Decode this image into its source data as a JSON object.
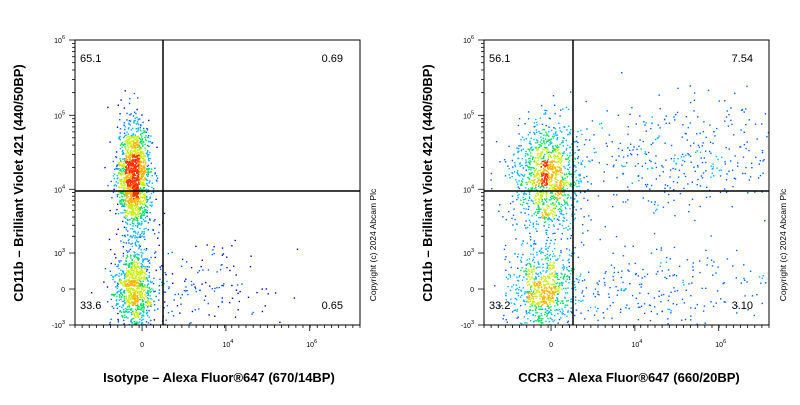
{
  "chart_data": [
    {
      "type": "scatter",
      "subtype": "flow-cytometry-pseudocolor-density",
      "xlabel": "Isotype – Alexa Fluor®647 (670/14BP)",
      "ylabel": "CD11b – Brilliant Violet 421 (440/50BP)",
      "x_scale": "biexponential",
      "y_scale": "biexponential",
      "x_ticks": [
        {
          "base": "0",
          "exp": ""
        },
        {
          "base": "10",
          "exp": "4"
        },
        {
          "base": "10",
          "exp": "6"
        }
      ],
      "y_ticks": [
        {
          "base": "10",
          "exp": "6"
        },
        {
          "base": "10",
          "exp": "5"
        },
        {
          "base": "10",
          "exp": "4"
        },
        {
          "base": "10",
          "exp": "3"
        },
        {
          "base": "0",
          "exp": ""
        },
        {
          "base": "-10",
          "exp": "3"
        }
      ],
      "quadrants": {
        "top_left": "65.1",
        "top_right": "0.69",
        "bottom_left": "33.6",
        "bottom_right": "0.65"
      },
      "populations": [
        {
          "x_pos": -0.1,
          "y": 15000,
          "spread_x": 0.1,
          "spread_y": 0.35,
          "weight": 0.6
        },
        {
          "x_pos": -0.1,
          "y": 0,
          "spread_x": 0.12,
          "spread_y": 0.3,
          "weight": 0.34
        },
        {
          "x_pos": 0.6,
          "y": 0,
          "spread_x": 0.5,
          "spread_y": 0.3,
          "weight": 0.06
        }
      ],
      "copyright": "Copyright (c) 2024 Abcam Plc"
    },
    {
      "type": "scatter",
      "subtype": "flow-cytometry-pseudocolor-density",
      "xlabel": "CCR3 – Alexa Fluor®647 (660/20BP)",
      "ylabel": "CD11b – Brilliant Violet 421 (440/50BP)",
      "x_scale": "biexponential",
      "y_scale": "biexponential",
      "x_ticks": [
        {
          "base": "0",
          "exp": ""
        },
        {
          "base": "10",
          "exp": "4"
        },
        {
          "base": "10",
          "exp": "6"
        }
      ],
      "y_ticks": [
        {
          "base": "10",
          "exp": "6"
        },
        {
          "base": "10",
          "exp": "5"
        },
        {
          "base": "10",
          "exp": "4"
        },
        {
          "base": "10",
          "exp": "3"
        },
        {
          "base": "0",
          "exp": ""
        },
        {
          "base": "-10",
          "exp": "3"
        }
      ],
      "quadrants": {
        "top_left": "56.1",
        "top_right": "7.54",
        "bottom_left": "33.2",
        "bottom_right": "3.10"
      },
      "populations": [
        {
          "x_pos": -0.05,
          "y": 15000,
          "spread_x": 0.2,
          "spread_y": 0.35,
          "weight": 0.45
        },
        {
          "x_pos": -0.1,
          "y": 0,
          "spread_x": 0.2,
          "spread_y": 0.3,
          "weight": 0.3
        },
        {
          "x_pos": 1.6,
          "y": 30000,
          "spread_x": 0.8,
          "spread_y": 0.4,
          "weight": 0.15
        },
        {
          "x_pos": 1.2,
          "y": 0,
          "spread_x": 0.8,
          "spread_y": 0.3,
          "weight": 0.1
        }
      ],
      "copyright": "Copyright (c) 2024 Abcam Plc"
    }
  ]
}
